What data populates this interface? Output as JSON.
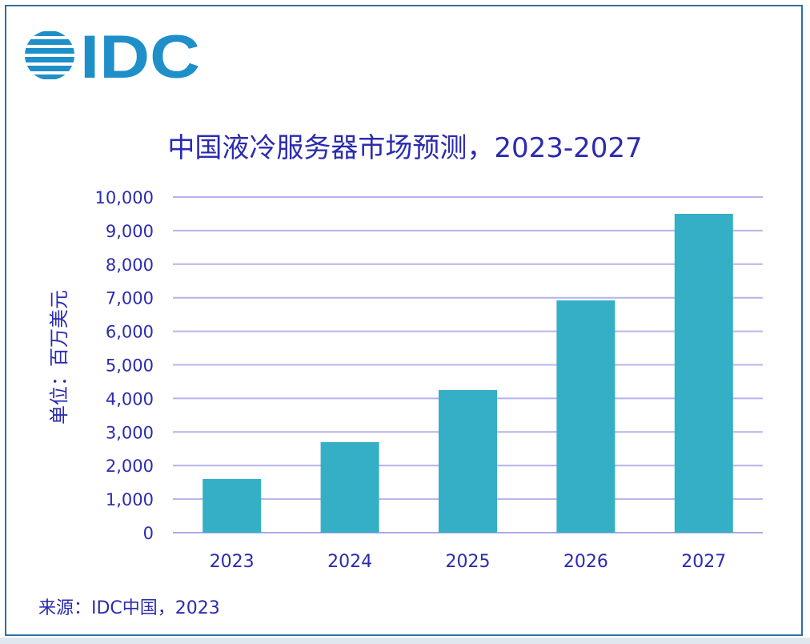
{
  "logo": {
    "text": "IDC",
    "color": "#1f8fc9"
  },
  "footer": {
    "source": "来源：IDC中国，2023"
  },
  "colors": {
    "bar": "#34afc6",
    "text": "#2b2bb0",
    "grid": "#b4b4ec",
    "axis": "#a8a8e6"
  },
  "chart_data": {
    "type": "bar",
    "title": "中国液冷服务器市场预测，2023-2027",
    "ylabel": "单位：百万美元",
    "xlabel": "",
    "categories": [
      "2023",
      "2024",
      "2025",
      "2026",
      "2027"
    ],
    "values": [
      1600,
      2700,
      4250,
      6920,
      9500
    ],
    "ylim": [
      0,
      10000
    ],
    "yticks": [
      "0",
      "1,000",
      "2,000",
      "3,000",
      "4,000",
      "5,000",
      "6,000",
      "7,000",
      "8,000",
      "9,000",
      "10,000"
    ],
    "grid": true,
    "legend": "none"
  }
}
